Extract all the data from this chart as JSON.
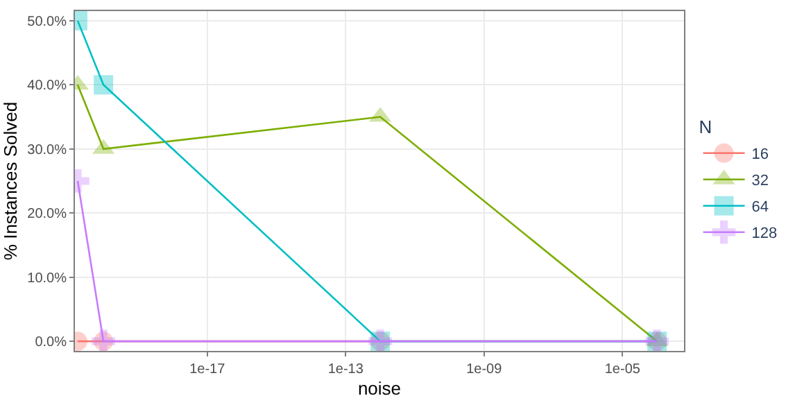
{
  "chart_data": {
    "type": "line",
    "xlabel": "noise",
    "ylabel": "% Instances Solved",
    "legend_title": "N",
    "legend": "right",
    "grid": true,
    "log": "x",
    "xlim": [
      1.5e-21,
      0.0006
    ],
    "xticks": [
      {
        "value": 1e-17,
        "label": "1e-17"
      },
      {
        "value": 1e-13,
        "label": "1e-13"
      },
      {
        "value": 1e-09,
        "label": "1e-09"
      },
      {
        "value": 1e-05,
        "label": "1e-05"
      }
    ],
    "ylim": [
      -1.5,
      51.5
    ],
    "yticks": [
      {
        "value": 0,
        "label": "0.0%"
      },
      {
        "value": 10,
        "label": "10.0%"
      },
      {
        "value": 20,
        "label": "20.0%"
      },
      {
        "value": 30,
        "label": "30.0%"
      },
      {
        "value": 40,
        "label": "40.0%"
      },
      {
        "value": 50,
        "label": "50.0%"
      }
    ],
    "x": [
      1.8e-21,
      1e-20,
      1e-12,
      0.0001
    ],
    "series": [
      {
        "name": "16",
        "color": "#f8766d",
        "marker": "circle",
        "values": [
          0,
          0,
          0,
          0
        ]
      },
      {
        "name": "32",
        "color": "#7cae00",
        "marker": "triangle",
        "values": [
          40,
          30,
          35,
          0
        ]
      },
      {
        "name": "64",
        "color": "#00bfc4",
        "marker": "square",
        "values": [
          50,
          40,
          0,
          0
        ]
      },
      {
        "name": "128",
        "color": "#c77cff",
        "marker": "cross",
        "values": [
          25,
          0,
          0,
          0
        ]
      }
    ]
  }
}
